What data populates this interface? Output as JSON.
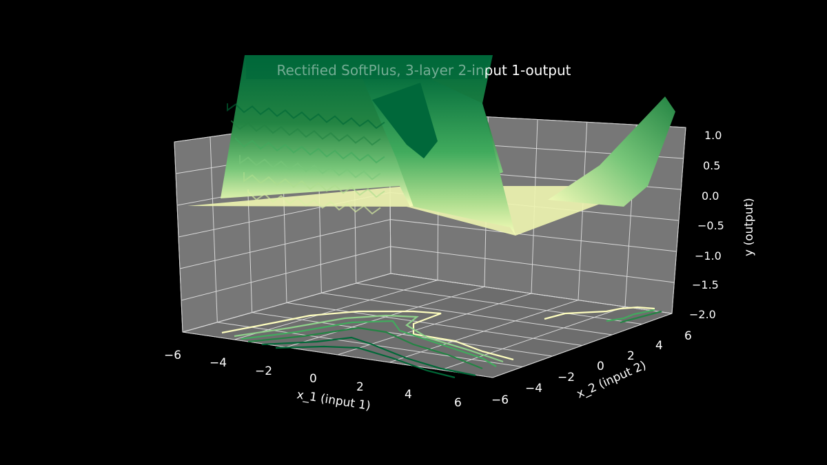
{
  "chart_data": {
    "type": "surface3d",
    "title": "Rectified SoftPlus, 3-layer 2-input 1-output",
    "xlabel": "x_1 (input 1)",
    "ylabel": "x_2 (input 2)",
    "zlabel": "y (output)",
    "xlim": [
      -6,
      6
    ],
    "ylim": [
      -6,
      6
    ],
    "zlim": [
      -2,
      1.2
    ],
    "x_ticks": [
      "−6",
      "−4",
      "−2",
      "0",
      "2",
      "4",
      "6"
    ],
    "y_ticks": [
      "−6",
      "−4",
      "−2",
      "0",
      "2",
      "4",
      "6"
    ],
    "z_ticks": [
      "−2.0",
      "−1.5",
      "−1.0",
      "−0.5",
      "0.0",
      "0.5",
      "1.0"
    ],
    "colormap": "YlGn",
    "background": "#000000",
    "pane_color": "#7a7a7a",
    "grid": true,
    "floor_contours": true,
    "contour_levels": [
      0.0,
      0.4,
      0.8,
      1.2
    ],
    "surface_samples": {
      "x1": [
        -6,
        -4,
        -2,
        0,
        2,
        4,
        6
      ],
      "x2": [
        -6,
        -4,
        -2,
        0,
        2,
        4,
        6
      ],
      "y": [
        [
          0.9,
          1.1,
          1.3,
          1.6,
          1.9,
          2.3,
          2.6
        ],
        [
          0.6,
          0.8,
          1.0,
          1.3,
          1.7,
          2.0,
          2.3
        ],
        [
          0.3,
          0.5,
          0.7,
          0.9,
          1.3,
          1.6,
          1.9
        ],
        [
          0.0,
          0.1,
          0.3,
          0.5,
          0.9,
          1.2,
          1.5
        ],
        [
          0.0,
          0.0,
          0.0,
          0.2,
          0.5,
          0.8,
          1.0
        ],
        [
          0.0,
          0.0,
          0.0,
          -0.3,
          0.1,
          0.4,
          0.6
        ],
        [
          0.0,
          0.0,
          0.0,
          -0.6,
          -0.2,
          0.2,
          0.4
        ]
      ]
    }
  }
}
